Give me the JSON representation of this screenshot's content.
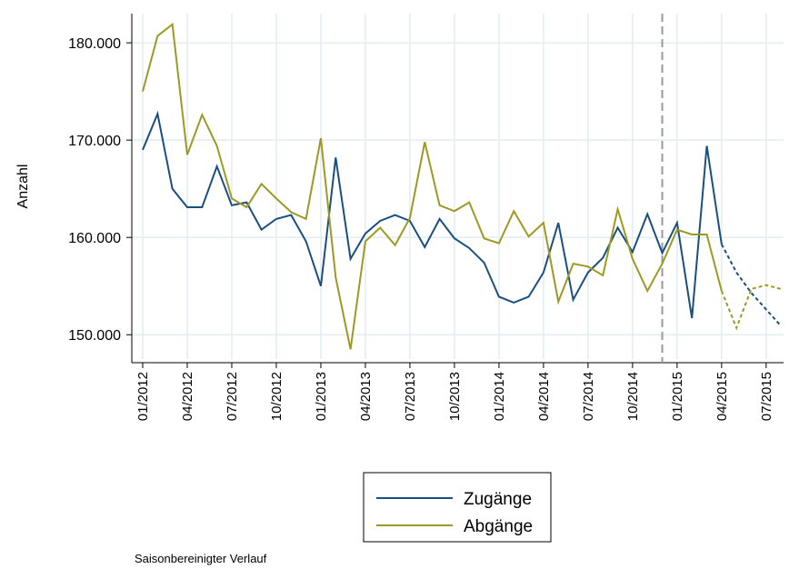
{
  "chart_data": {
    "type": "line",
    "y_label": "Anzahl",
    "note": "Saisonbereinigter Verlauf",
    "categories": [
      "01/2012",
      null,
      null,
      "04/2012",
      null,
      null,
      "07/2012",
      null,
      null,
      "10/2012",
      null,
      null,
      "01/2013",
      null,
      null,
      "04/2013",
      null,
      null,
      "07/2013",
      null,
      null,
      "10/2013",
      null,
      null,
      "01/2014",
      null,
      null,
      "04/2014",
      null,
      null,
      "07/2014",
      null,
      null,
      "10/2014",
      null,
      null,
      "01/2015",
      null,
      null,
      "04/2015",
      null,
      null,
      "07/2015",
      null
    ],
    "series": [
      {
        "name": "Zugänge",
        "color": "#1a4f80",
        "values": [
          169000,
          172700,
          165000,
          163100,
          163100,
          167300,
          163300,
          163600,
          160800,
          161900,
          162300,
          159600,
          155000,
          168200,
          157800,
          160400,
          161700,
          162300,
          161700,
          159000,
          161900,
          159900,
          158900,
          157400,
          153900,
          153300,
          153900,
          156400,
          161500,
          153600,
          156400,
          157900,
          161000,
          158500,
          162400,
          158400,
          161500,
          151700,
          169400,
          159300,
          156400,
          154300,
          152600,
          150900
        ]
      },
      {
        "name": "Abgänge",
        "color": "#9c9a24",
        "values": [
          175000,
          180700,
          181900,
          168500,
          172600,
          169400,
          164000,
          163100,
          165500,
          164000,
          162600,
          161900,
          170200,
          155900,
          148500,
          159600,
          161000,
          159200,
          162000,
          169800,
          163300,
          162700,
          163600,
          159900,
          159400,
          162700,
          160100,
          161500,
          153400,
          157300,
          157000,
          156100,
          162900,
          157800,
          154500,
          157300,
          160800,
          160300,
          160300,
          154500,
          150700,
          154700,
          155100,
          154700
        ]
      }
    ],
    "dotted_from_index": 39,
    "vline_index": 35,
    "ylim": [
      147500,
      183000
    ],
    "yticks": [
      {
        "value": 150000,
        "label": "150.000"
      },
      {
        "value": 160000,
        "label": "160.000"
      },
      {
        "value": 170000,
        "label": "170.000"
      },
      {
        "value": 180000,
        "label": "180.000"
      }
    ],
    "grid": true
  }
}
